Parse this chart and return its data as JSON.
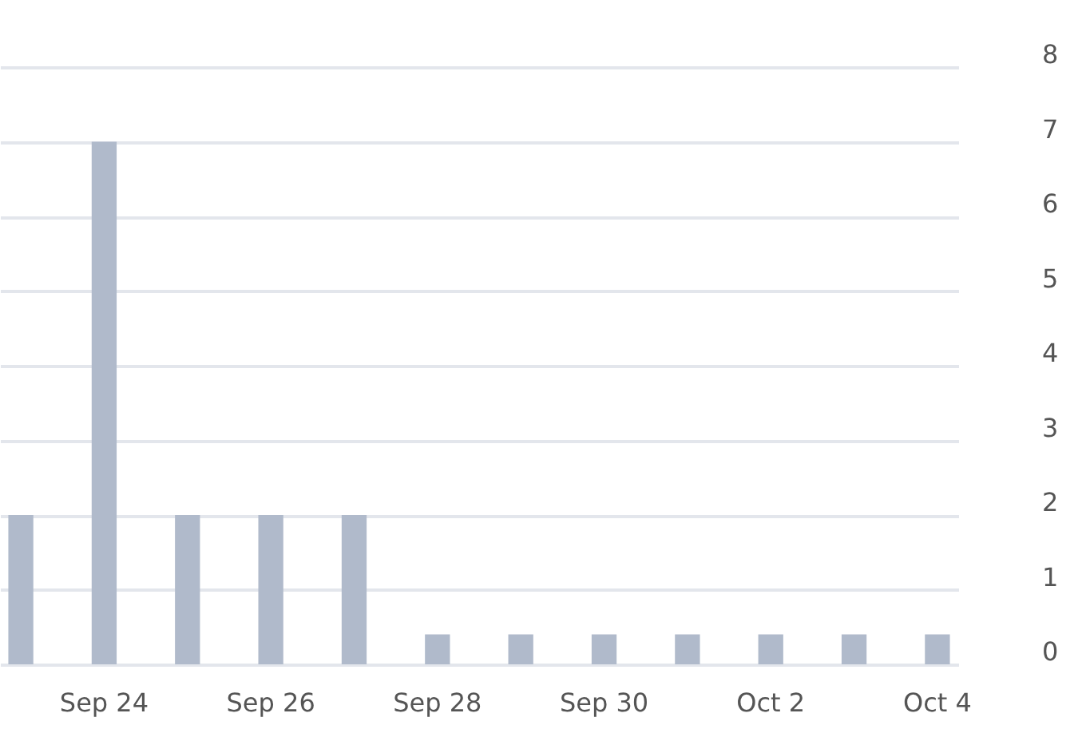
{
  "chart_data": {
    "type": "bar",
    "categories": [
      null,
      "Sep 24",
      null,
      "Sep 26",
      null,
      "Sep 28",
      null,
      "Sep 30",
      null,
      "Oct 2",
      null,
      "Oct 4"
    ],
    "values": [
      2,
      7,
      2,
      2,
      2,
      0.4,
      0.4,
      0.4,
      0.4,
      0.4,
      0.4,
      0.4
    ],
    "color": "#b0bacb",
    "ylim": [
      0,
      8
    ],
    "yticks": [
      0,
      1,
      2,
      3,
      4,
      5,
      6,
      7,
      8
    ],
    "grid": "y"
  }
}
